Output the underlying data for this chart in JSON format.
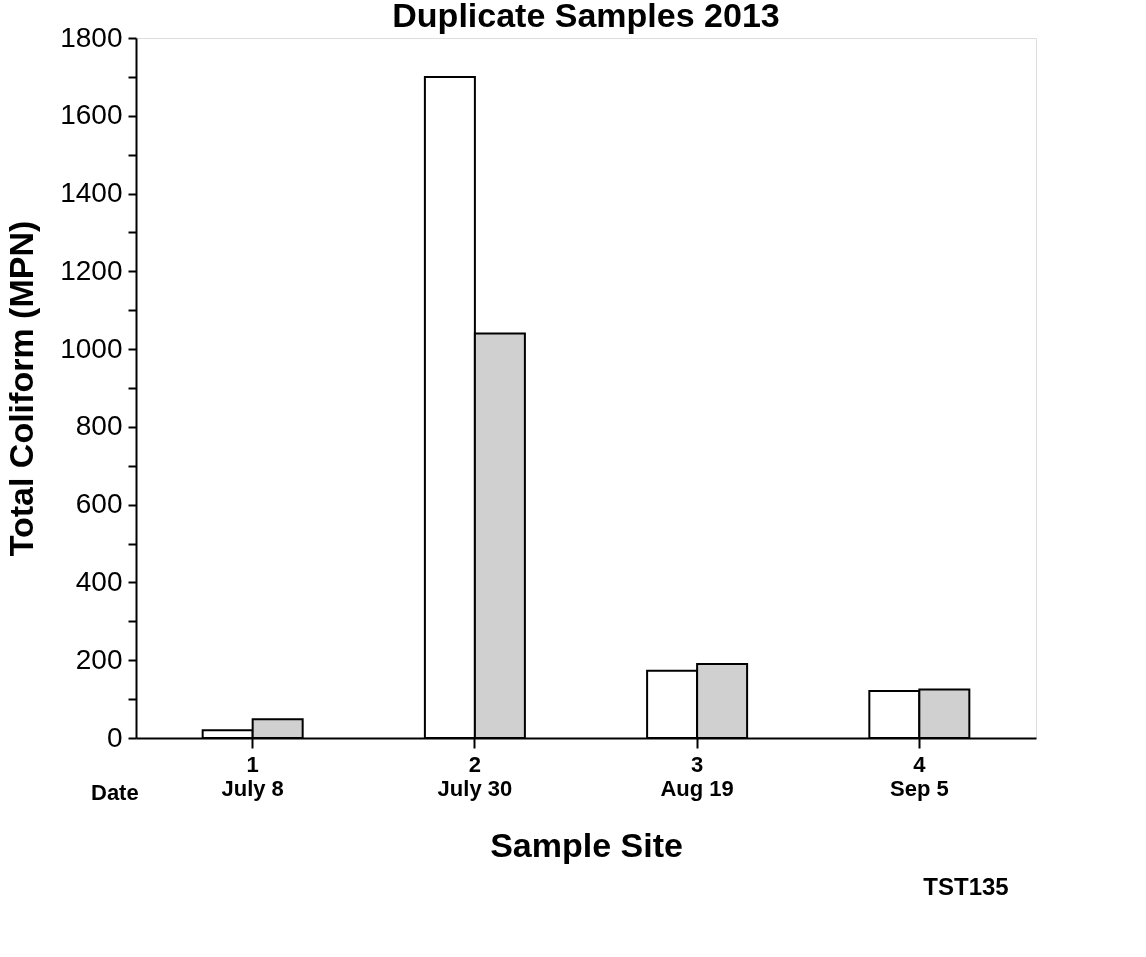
{
  "chart_data": {
    "type": "bar",
    "title": "Duplicate Samples 2013",
    "xlabel": "Sample Site",
    "ylabel": "Total Coliform (MPN)",
    "categories": [
      "1\nJuly 8",
      "2\nJuly 30",
      "3\nAug 19",
      "4\nSep 5"
    ],
    "series": [
      {
        "color": "#ffffff",
        "values": [
          20,
          1700,
          173,
          121
        ]
      },
      {
        "color": "#d0d0d0",
        "values": [
          48,
          1040,
          190,
          125
        ]
      }
    ],
    "ylim": [
      0,
      1800
    ],
    "yticks": [
      0,
      {
        "value": 100,
        "label": null
      },
      200,
      {
        "value": 300,
        "label": null
      },
      400,
      {
        "value": 500,
        "label": null
      },
      600,
      {
        "value": 700,
        "label": null
      },
      800,
      {
        "value": 900,
        "label": null
      },
      1000,
      {
        "value": 1100,
        "label": null
      },
      1200,
      {
        "value": 1300,
        "label": null
      },
      1400,
      {
        "value": 1500,
        "label": null
      },
      1600,
      {
        "value": 1700,
        "label": null
      },
      1800
    ],
    "grid": false,
    "legend": false,
    "annotations": [
      "Date",
      "TST135"
    ]
  }
}
